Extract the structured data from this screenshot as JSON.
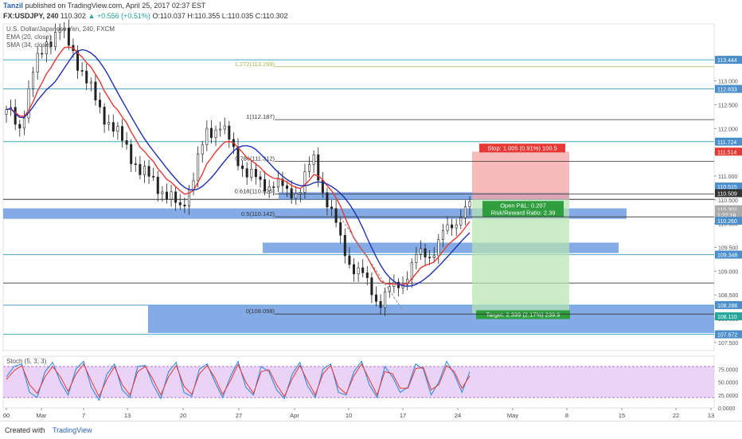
{
  "header": {
    "author": "Tanzil",
    "published_line": "published on TradingView.com, April 25, 2017 02:37 EST",
    "symbol": "FX:USDJPY, 240",
    "last": "110.302",
    "change": "+0.556 (+0.51%)",
    "open": "O:110.037",
    "high": "H:110.355",
    "low": "L:110.035",
    "close": "C:110.302"
  },
  "legend": {
    "title": "U.S. Dollar/Japanese Yen, 240, FXCM",
    "ema": "EMA (20, close)",
    "sma": "SMA (34, close)"
  },
  "footer": {
    "created": "Created with",
    "brand": "TradingView"
  },
  "colors": {
    "ema": "#e53935",
    "sma": "#1e2fb0",
    "bull": "#222222",
    "bear": "#222222",
    "zone": "#5b8fdc",
    "stop": "#f4a4a4",
    "target": "#b7e4b0",
    "stoch_fill": "#e6c8f5"
  },
  "chart_data": [
    {
      "type": "candlestick",
      "title": "U.S. Dollar/Japanese Yen, 240, FXCM",
      "y_axis_ticks": [
        107.5,
        108.0,
        108.5,
        109.0,
        109.5,
        110.0,
        110.5,
        111.0,
        111.5,
        112.0,
        112.5,
        113.0,
        113.5
      ],
      "y_axis_tick_labels": [
        "107.500",
        "108.000",
        "108.500",
        "109.000",
        "109.500",
        "110.000",
        "110.500",
        "111.000",
        "111.500",
        "112.000",
        "112.500",
        "113.000",
        "113.500"
      ],
      "ylim": [
        107.33,
        114.2
      ],
      "x_axis_labels": [
        "00",
        "Mar",
        "7",
        "13",
        "20",
        "27",
        "Apr",
        "10",
        "17",
        "24",
        "May",
        "8",
        "15",
        "22",
        "13"
      ],
      "x_axis_positions": [
        8,
        52,
        105,
        160,
        230,
        300,
        370,
        438,
        506,
        575,
        644,
        712,
        781,
        849,
        893
      ],
      "price_badges": [
        {
          "value": "113.444",
          "y": 113.444,
          "bg": "#4a8ecb"
        },
        {
          "value": "112.833",
          "y": 112.833,
          "bg": "#4a8ecb"
        },
        {
          "value": "111.724",
          "y": 111.724,
          "bg": "#4a8ecb"
        },
        {
          "value": "111.514",
          "y": 111.514,
          "bg": "#e53935"
        },
        {
          "value": "110.515",
          "y": 110.78,
          "bg": "#4a8ecb"
        },
        {
          "value": "110.509",
          "y": 110.64,
          "bg": "#333333"
        },
        {
          "value": "110.302",
          "y": 110.302,
          "bg": "#aaaaaa"
        },
        {
          "value": "1:22:16",
          "y": 110.19,
          "bg": "#aaaaaa"
        },
        {
          "value": "110.260",
          "y": 110.06,
          "bg": "#4a8ecb"
        },
        {
          "value": "109.348",
          "y": 109.348,
          "bg": "#4a8ecb"
        },
        {
          "value": "108.286",
          "y": 108.286,
          "bg": "#4a8ecb"
        },
        {
          "value": "108.110",
          "y": 108.05,
          "bg": "#26a69a"
        },
        {
          "value": "107.672",
          "y": 107.672,
          "bg": "#4a8ecb"
        }
      ],
      "horizontal_levels": [
        {
          "y": 113.444,
          "color": "#4aa6c8"
        },
        {
          "y": 112.833,
          "color": "#4aa6c8"
        },
        {
          "y": 111.724,
          "color": "#4aa6c8"
        },
        {
          "y": 110.509,
          "color": "#333333"
        },
        {
          "y": 109.348,
          "color": "#4aa6c8"
        },
        {
          "y": 108.286,
          "color": "#4aa6c8"
        },
        {
          "y": 107.672,
          "color": "#4aa6c8"
        },
        {
          "y": 108.75,
          "color": "#555555"
        }
      ],
      "fibonacci": [
        {
          "label": "1.272(113.299)",
          "price": 113.299
        },
        {
          "label": "1(112.187)",
          "price": 112.187
        },
        {
          "label": "0.786(111.312)",
          "price": 111.312
        },
        {
          "label": "0.618(110.625)",
          "price": 110.625
        },
        {
          "label": "0.5(110.142)",
          "price": 110.142
        },
        {
          "label": "0(108.098)",
          "price": 108.098
        }
      ],
      "position": {
        "stop_label": "Stop: 1.005 (0.91%) 100.5",
        "pnl_label": "Open P&L: 0.207",
        "rr_label": "Risk/Reward Ratio: 2.39",
        "target_label": "Target: 2.399 (2.17%) 239.9",
        "entry": 110.509,
        "stop": 111.514,
        "target": 108.11
      },
      "series_ohlc_approx": {
        "note_free_values": [
          112.4,
          112.0,
          113.2,
          113.8,
          114.1,
          113.6,
          113.0,
          112.4,
          112.0,
          111.6,
          111.1,
          110.9,
          110.6,
          110.3,
          111.0,
          111.9,
          112.1,
          111.5,
          111.1,
          110.8,
          110.9,
          110.6,
          110.8,
          111.3,
          110.5,
          109.6,
          109.1,
          108.7,
          108.4,
          108.6,
          109.0,
          109.3,
          109.5,
          109.8,
          110.3
        ]
      }
    },
    {
      "type": "line",
      "title": "Stoch (5, 3, 3)",
      "ylim": [
        0,
        100
      ],
      "y_axis_ticks": [
        0,
        25,
        50,
        75
      ],
      "y_axis_tick_labels": [
        "0.0000",
        "25.0000",
        "50.0000",
        "75.0000"
      ],
      "band": [
        20,
        80
      ],
      "series": [
        {
          "values": [
            60,
            80,
            85,
            30,
            20,
            70,
            88,
            50,
            25,
            75,
            90,
            40,
            15,
            65,
            85,
            35,
            20,
            80,
            82,
            45,
            18,
            70,
            88,
            30,
            22,
            75,
            85,
            50,
            20,
            60,
            90,
            40,
            25,
            80,
            70,
            35,
            18,
            65,
            88,
            42,
            20,
            75,
            85,
            30,
            25,
            70,
            90,
            45,
            20,
            80,
            60,
            30,
            40,
            85,
            75,
            25,
            50,
            90,
            65,
            30,
            70
          ]
        },
        {
          "values": [
            55,
            72,
            82,
            45,
            28,
            60,
            80,
            60,
            32,
            65,
            85,
            52,
            22,
            55,
            80,
            45,
            25,
            70,
            80,
            55,
            25,
            60,
            82,
            42,
            26,
            66,
            82,
            58,
            26,
            52,
            84,
            50,
            28,
            70,
            74,
            45,
            22,
            56,
            82,
            52,
            25,
            66,
            82,
            40,
            27,
            62,
            85,
            55,
            25,
            70,
            66,
            38,
            38,
            76,
            78,
            35,
            45,
            82,
            70,
            38,
            62
          ]
        }
      ]
    }
  ]
}
